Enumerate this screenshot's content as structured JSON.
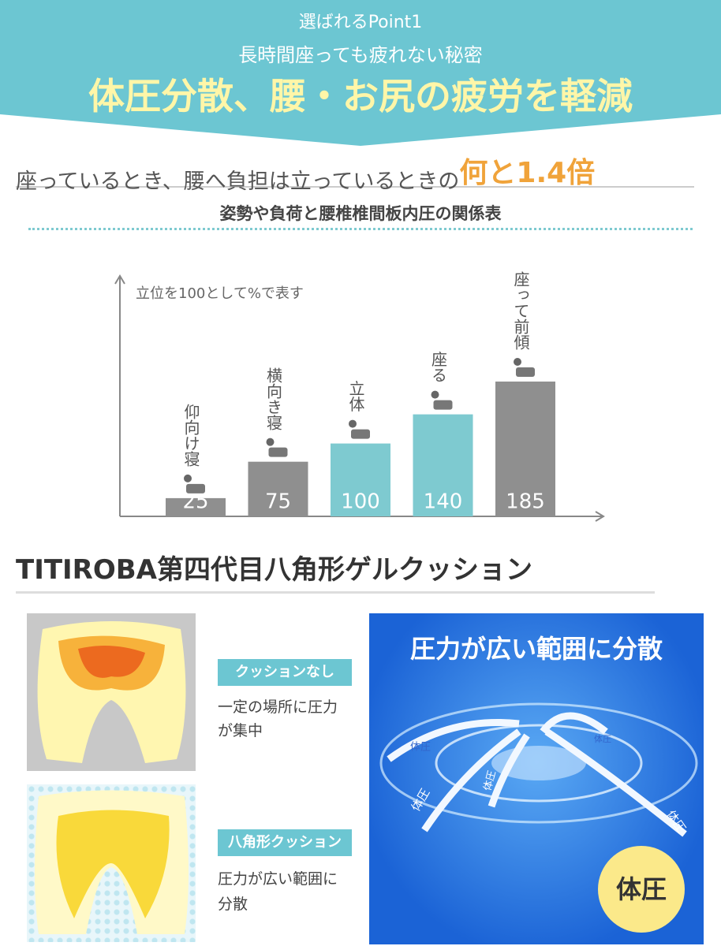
{
  "header": {
    "kicker": "選ばれるPoint1",
    "subtitle": "長時間座っても疲れない秘密",
    "title": "体圧分散、腰・お尻の疲労を軽減"
  },
  "headline": {
    "text": "座っているとき、腰へ負担は立っているときの",
    "emphasis": "何と1.4倍"
  },
  "chart_data": {
    "type": "bar",
    "title": "姿勢や負荷と腰椎椎間板内圧の関係表",
    "note": "立位を100として%で表す",
    "categories": [
      "仰向け寝",
      "横向き寝",
      "立体",
      "座る",
      "座って前傾"
    ],
    "values": [
      25,
      75,
      100,
      140,
      185
    ],
    "colors": [
      "#8f8f8f",
      "#8f8f8f",
      "#7ecad0",
      "#7ecad0",
      "#8f8f8f"
    ],
    "ylim": [
      0,
      330
    ]
  },
  "section": {
    "title": "TITIROBA第四代目八角形ゲルクッション",
    "without": {
      "label": "クッションなし",
      "lines": [
        "一定の場所に圧力",
        "が集中"
      ]
    },
    "with": {
      "label": "八角形クッション",
      "lines": [
        "圧力が広い範囲に",
        "分散"
      ]
    },
    "panel": {
      "title": "圧力が広い範囲に分散",
      "arrow_label": "体圧",
      "badge": "体圧"
    }
  }
}
